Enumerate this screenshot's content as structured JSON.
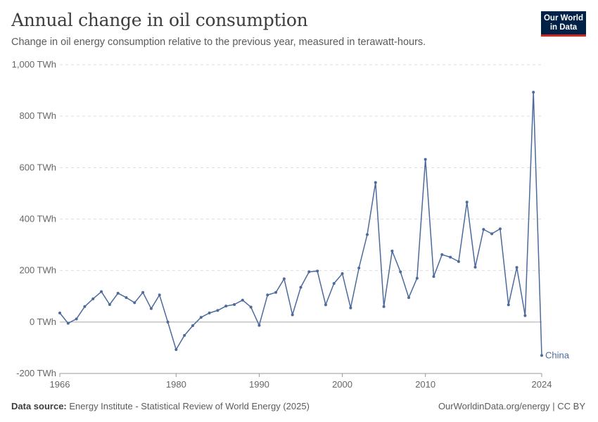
{
  "header": {
    "title": "Annual change in oil consumption",
    "subtitle": "Change in oil energy consumption relative to the previous year, measured in terawatt-hours."
  },
  "logo": {
    "line1": "Our World",
    "line2": "in Data"
  },
  "footer": {
    "source_label": "Data source:",
    "source_text": "Energy Institute - Statistical Review of World Energy (2025)",
    "credit": "OurWorldinData.org/energy | CC BY"
  },
  "colors": {
    "series": "#4c6a9c",
    "grid": "#dddddd",
    "zero": "#a8a8a8",
    "axis_text": "#666666"
  },
  "chart_data": {
    "type": "line",
    "title": "Annual change in oil consumption",
    "ylim": [
      -200,
      1000
    ],
    "yticks": [
      -200,
      0,
      200,
      400,
      600,
      800,
      1000
    ],
    "ytick_labels": [
      "-200 TWh",
      "0 TWh",
      "200 TWh",
      "400 TWh",
      "600 TWh",
      "800 TWh",
      "1,000 TWh"
    ],
    "xlim": [
      1966,
      2024
    ],
    "xticks": [
      1966,
      1980,
      1990,
      2000,
      2010,
      2024
    ],
    "xtick_labels": [
      "1966",
      "1980",
      "1990",
      "2000",
      "2010",
      "2024"
    ],
    "grid": true,
    "series": [
      {
        "name": "China",
        "x": [
          1966,
          1967,
          1968,
          1969,
          1970,
          1971,
          1972,
          1973,
          1974,
          1975,
          1976,
          1977,
          1978,
          1979,
          1980,
          1981,
          1982,
          1983,
          1984,
          1985,
          1986,
          1987,
          1988,
          1989,
          1990,
          1991,
          1992,
          1993,
          1994,
          1995,
          1996,
          1997,
          1998,
          1999,
          2000,
          2001,
          2002,
          2003,
          2004,
          2005,
          2006,
          2007,
          2008,
          2009,
          2010,
          2011,
          2012,
          2013,
          2014,
          2015,
          2016,
          2017,
          2018,
          2019,
          2020,
          2021,
          2022,
          2023,
          2024
        ],
        "y": [
          35,
          -5,
          12,
          60,
          90,
          118,
          68,
          112,
          95,
          75,
          115,
          52,
          105,
          0,
          -107,
          -52,
          -14,
          18,
          35,
          45,
          62,
          68,
          85,
          58,
          -13,
          105,
          115,
          168,
          28,
          135,
          195,
          198,
          67,
          150,
          188,
          55,
          210,
          340,
          542,
          60,
          276,
          195,
          95,
          170,
          632,
          177,
          262,
          252,
          235,
          466,
          213,
          360,
          343,
          362,
          67,
          212,
          25,
          893,
          -130
        ]
      }
    ]
  }
}
